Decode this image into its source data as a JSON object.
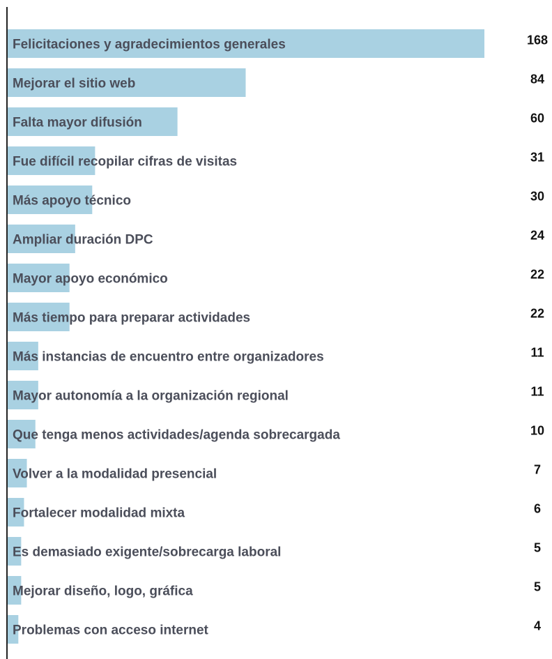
{
  "chart_data": {
    "type": "bar",
    "orientation": "horizontal",
    "color": "#a9d1e2",
    "categories": [
      "Felicitaciones y agradecimientos generales",
      "Mejorar el sitio web",
      "Falta mayor difusión",
      "Fue difícil recopilar cifras de visitas",
      "Más apoyo técnico",
      "Ampliar duración DPC",
      "Mayor apoyo económico",
      "Más tiempo para preparar actividades",
      "Más instancias de encuentro entre organizadores",
      "Mayor autonomía a la organización regional",
      "Que tenga menos actividades/agenda sobrecargada",
      "Volver a la modalidad presencial",
      "Fortalecer modalidad mixta",
      "Es demasiado exigente/sobrecarga laboral",
      "Mejorar diseño, logo, gráfica",
      "Problemas con acceso internet"
    ],
    "values": [
      168,
      84,
      60,
      31,
      30,
      24,
      22,
      22,
      11,
      11,
      10,
      7,
      6,
      5,
      5,
      4
    ]
  }
}
